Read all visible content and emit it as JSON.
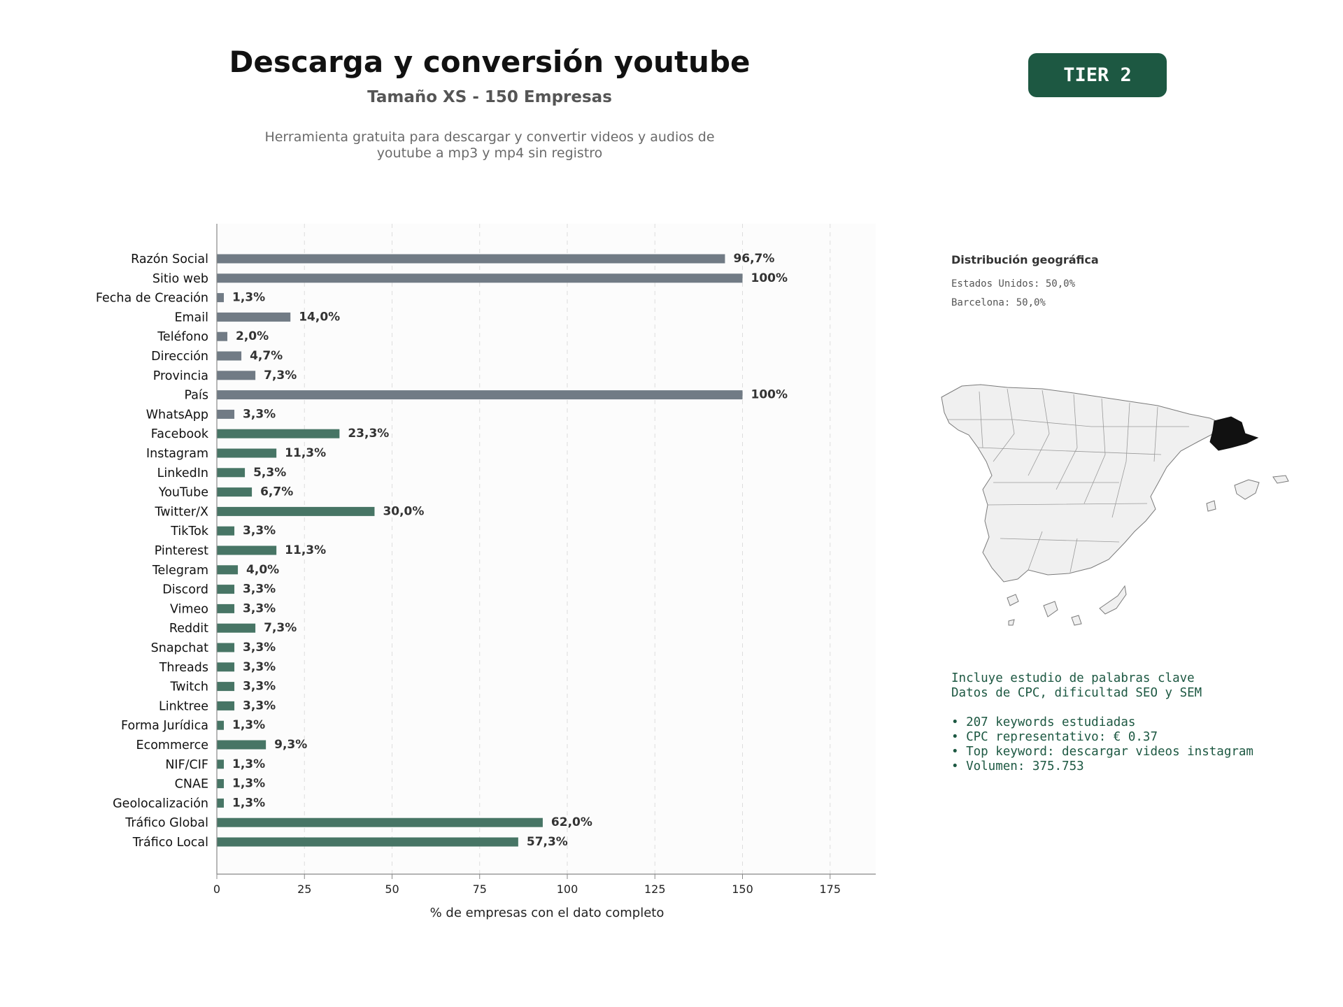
{
  "header": {
    "title": "Descarga y conversión youtube",
    "subtitle": "Tamaño XS - 150 Empresas",
    "description_line1": "Herramienta gratuita para descargar y convertir videos y audios de",
    "description_line2": "youtube a mp3 y mp4 sin registro",
    "tier_label": "TIER 2"
  },
  "colors": {
    "basic_fields": "#717b85",
    "social_fields": "#477565",
    "accent": "#1d5842",
    "map_fill": "#f0f0f0",
    "map_highlight": "#111111"
  },
  "chart_data": {
    "type": "bar",
    "orientation": "horizontal",
    "xlabel": "% de empresas con el dato completo",
    "xlim": [
      0,
      188
    ],
    "xticks": [
      0,
      25,
      50,
      75,
      100,
      125,
      150,
      175
    ],
    "grid": "vertical dashed",
    "categories": [
      "Razón Social",
      "Sitio web",
      "Fecha de Creación",
      "Email",
      "Teléfono",
      "Dirección",
      "Provincia",
      "País",
      "WhatsApp",
      "Facebook",
      "Instagram",
      "LinkedIn",
      "YouTube",
      "Twitter/X",
      "TikTok",
      "Pinterest",
      "Telegram",
      "Discord",
      "Vimeo",
      "Reddit",
      "Snapchat",
      "Threads",
      "Twitch",
      "Linktree",
      "Forma Jurídica",
      "Ecommerce",
      "NIF/CIF",
      "CNAE",
      "Geolocalización",
      "Tráfico Global",
      "Tráfico Local"
    ],
    "values": [
      145,
      150,
      2,
      21,
      3,
      7,
      11,
      150,
      5,
      35,
      17,
      8,
      10,
      45,
      5,
      17,
      6,
      5,
      5,
      11,
      5,
      5,
      5,
      5,
      2,
      14,
      2,
      2,
      2,
      93,
      86
    ],
    "labels": [
      "96,7%",
      "100%",
      "1,3%",
      "14,0%",
      "2,0%",
      "4,7%",
      "7,3%",
      "100%",
      "3,3%",
      "23,3%",
      "11,3%",
      "5,3%",
      "6,7%",
      "30,0%",
      "3,3%",
      "11,3%",
      "4,0%",
      "3,3%",
      "3,3%",
      "7,3%",
      "3,3%",
      "3,3%",
      "3,3%",
      "3,3%",
      "1,3%",
      "9,3%",
      "1,3%",
      "1,3%",
      "1,3%",
      "62,0%",
      "57,3%"
    ],
    "groups": [
      "basic",
      "basic",
      "basic",
      "basic",
      "basic",
      "basic",
      "basic",
      "basic",
      "basic",
      "social",
      "social",
      "social",
      "social",
      "social",
      "social",
      "social",
      "social",
      "social",
      "social",
      "social",
      "social",
      "social",
      "social",
      "social",
      "social",
      "social",
      "social",
      "social",
      "social",
      "social",
      "social"
    ]
  },
  "geo": {
    "title": "Distribución geográfica",
    "items": [
      "Estados Unidos: 50,0%",
      "Barcelona: 50,0%"
    ],
    "highlighted_region": "Barcelona"
  },
  "keywords": {
    "line1": "Incluye estudio de palabras clave",
    "line2": "Datos de CPC, dificultad SEO y SEM",
    "bullets": [
      "• 207 keywords estudiadas",
      "• CPC representativo: € 0.37",
      "• Top keyword: descargar videos instagram",
      "• Volumen: 375.753"
    ]
  }
}
